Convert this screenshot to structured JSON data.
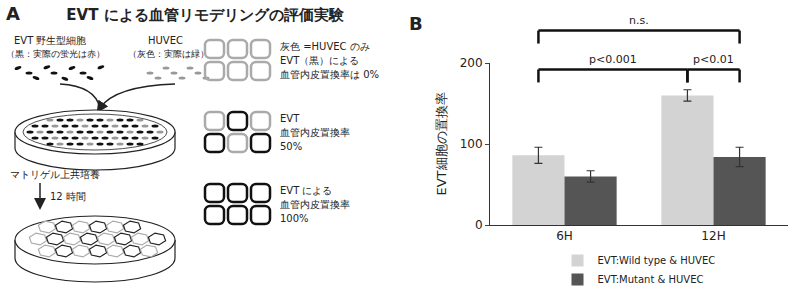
{
  "diagram": {
    "panel_label": "A",
    "title": "EVT による血管リモデリングの評価実験",
    "cells": [
      {
        "label": "EVT 野生型細胞",
        "note": "（黒：実際の蛍光は赤）"
      },
      {
        "label": "HUVEC",
        "note": "（灰色：実際は緑）"
      }
    ],
    "step": {
      "label": "マトリゲル上共培養",
      "time": "12 時間"
    },
    "key": [
      {
        "lines": [
          "灰色 =HUVEC のみ",
          "EVT（黒）による",
          "血管内皮置換率は 0%"
        ]
      },
      {
        "lines": [
          "EVT",
          "血管内皮置換率",
          "50%"
        ]
      },
      {
        "lines": [
          "EVT による",
          "血管内皮置換率",
          "100%"
        ]
      }
    ]
  },
  "chart_data": {
    "type": "bar",
    "panel_label": "B",
    "y_label": "EVT細胞の置換率",
    "categories": [
      "6H",
      "12H"
    ],
    "series": [
      {
        "name": "EVT:Wild type & HUVEC",
        "color": "#d3d3d3",
        "values": [
          86,
          160
        ],
        "errors": [
          10,
          7
        ]
      },
      {
        "name": "EVT:Mutant & HUVEC",
        "color": "#555555",
        "values": [
          60,
          84
        ],
        "errors": [
          7,
          12
        ]
      }
    ],
    "ylim": [
      0,
      200
    ],
    "yticks": [
      0,
      100,
      200
    ],
    "grid": false,
    "legend": "bottom",
    "annotations": [
      {
        "text": "p<0.001",
        "from": [
          "6H",
          "EVT:Wild type & HUVEC"
        ],
        "to": [
          "12H",
          "EVT:Wild type & HUVEC"
        ]
      },
      {
        "text": "p<0.01",
        "from": [
          "12H",
          "EVT:Wild type & HUVEC"
        ],
        "to": [
          "12H",
          "EVT:Mutant & HUVEC"
        ]
      },
      {
        "text": "n.s.",
        "from": [
          "6H",
          "EVT:Wild type & HUVEC"
        ],
        "to": [
          "12H",
          "EVT:Mutant & HUVEC"
        ]
      }
    ]
  }
}
